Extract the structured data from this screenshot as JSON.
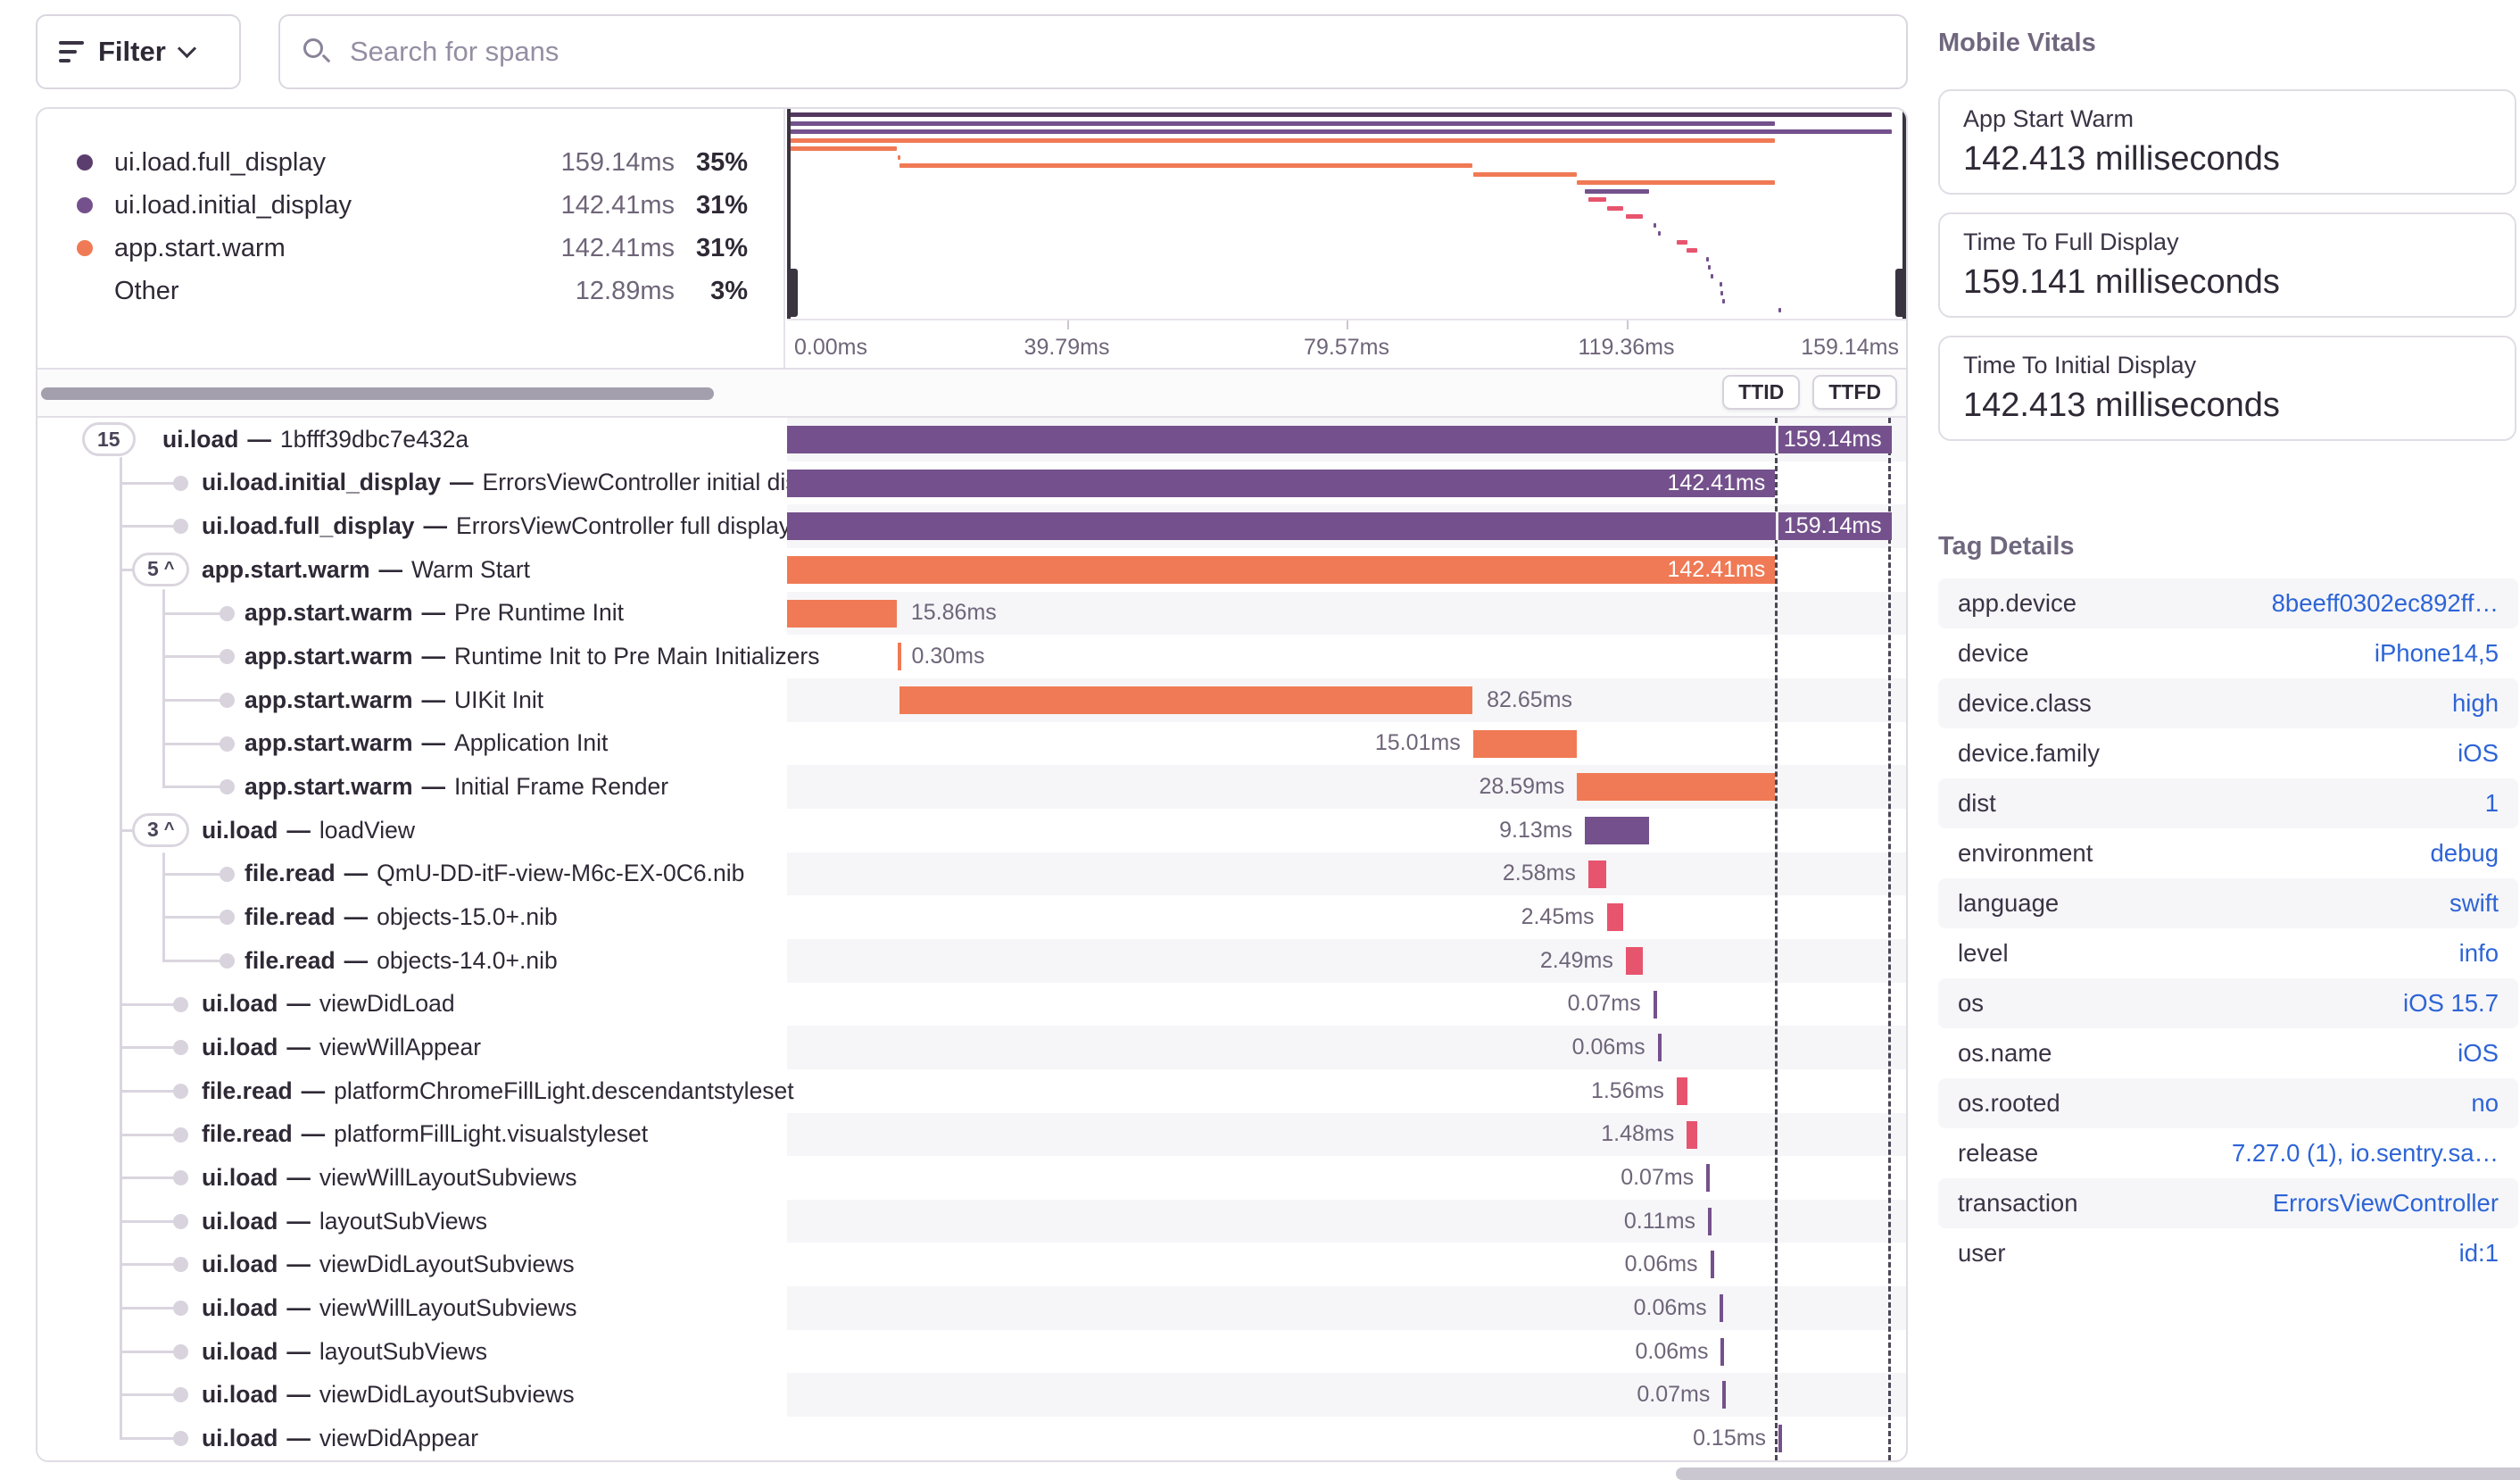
{
  "toolbar": {
    "filter_label": "Filter",
    "search_placeholder": "Search for spans"
  },
  "colors": {
    "purple": "#74518C",
    "orange": "#F07A55",
    "red": "#E7546E",
    "root_mini": "#53395F",
    "blue": "#2D64D6"
  },
  "legend": {
    "items": [
      {
        "label": "ui.load.full_display",
        "value": "159.14ms",
        "pct": "35%",
        "color": "#5B3D6E"
      },
      {
        "label": "ui.load.initial_display",
        "value": "142.41ms",
        "pct": "31%",
        "color": "#74518C"
      },
      {
        "label": "app.start.warm",
        "value": "142.41ms",
        "pct": "31%",
        "color": "#F07A55"
      },
      {
        "label": "Other",
        "value": "12.89ms",
        "pct": "3%",
        "color": null
      }
    ]
  },
  "minimap": {
    "axis_ticks": [
      "0.00ms",
      "39.79ms",
      "79.57ms",
      "119.36ms",
      "159.14ms"
    ]
  },
  "markers": {
    "ttid": "TTID",
    "ttfd": "TTFD",
    "ttid_pct": 88.3,
    "ttfd_pct": 98.4
  },
  "tree": {
    "separator": "—"
  },
  "spans": [
    {
      "op": "ui.load",
      "desc": "1bfff39dbc7e432a",
      "badge": "15",
      "arrow": false,
      "depth": 0,
      "color": "purple",
      "start": 0,
      "width": 98.7,
      "label": "159.14ms",
      "label_pos": "inside",
      "tick": false,
      "cross_ttid": true
    },
    {
      "op": "ui.load.initial_display",
      "desc": "ErrorsViewController initial display",
      "badge": null,
      "arrow": false,
      "depth": 1,
      "color": "purple",
      "start": 0,
      "width": 88.3,
      "label": "142.41ms",
      "label_pos": "inside",
      "tick": false,
      "cross_ttid": false
    },
    {
      "op": "ui.load.full_display",
      "desc": "ErrorsViewController full display",
      "badge": null,
      "arrow": false,
      "depth": 1,
      "color": "purple",
      "start": 0,
      "width": 98.7,
      "label": "159.14ms",
      "label_pos": "inside",
      "tick": false,
      "cross_ttid": true
    },
    {
      "op": "app.start.warm",
      "desc": "Warm Start",
      "badge": "5",
      "arrow": true,
      "depth": 1,
      "color": "orange",
      "start": 0,
      "width": 88.3,
      "label": "142.41ms",
      "label_pos": "inside",
      "tick": false,
      "cross_ttid": false
    },
    {
      "op": "app.start.warm",
      "desc": "Pre Runtime Init",
      "badge": null,
      "arrow": false,
      "depth": 2,
      "color": "orange",
      "start": 0,
      "width": 9.8,
      "label": "15.86ms",
      "label_pos": "right",
      "tick": false,
      "cross_ttid": false
    },
    {
      "op": "app.start.warm",
      "desc": "Runtime Init to Pre Main Initializers",
      "badge": null,
      "arrow": false,
      "depth": 2,
      "color": "orange",
      "start": 9.85,
      "width": 0.19,
      "label": "0.30ms",
      "label_pos": "right",
      "tick": true,
      "cross_ttid": false
    },
    {
      "op": "app.start.warm",
      "desc": "UIKit Init",
      "badge": null,
      "arrow": false,
      "depth": 2,
      "color": "orange",
      "start": 10.05,
      "width": 51.2,
      "label": "82.65ms",
      "label_pos": "right",
      "tick": false,
      "cross_ttid": false
    },
    {
      "op": "app.start.warm",
      "desc": "Application Init",
      "badge": null,
      "arrow": false,
      "depth": 2,
      "color": "orange",
      "start": 61.3,
      "width": 9.3,
      "label": "15.01ms",
      "label_pos": "left",
      "tick": false,
      "cross_ttid": false
    },
    {
      "op": "app.start.warm",
      "desc": "Initial Frame Render",
      "badge": null,
      "arrow": false,
      "depth": 2,
      "color": "orange",
      "start": 70.6,
      "width": 17.7,
      "label": "28.59ms",
      "label_pos": "left",
      "tick": false,
      "cross_ttid": false
    },
    {
      "op": "ui.load",
      "desc": "loadView",
      "badge": "3",
      "arrow": true,
      "depth": 1,
      "color": "purple",
      "start": 71.3,
      "width": 5.7,
      "label": "9.13ms",
      "label_pos": "left",
      "tick": false,
      "cross_ttid": false
    },
    {
      "op": "file.read",
      "desc": "QmU-DD-itF-view-M6c-EX-0C6.nib",
      "badge": null,
      "arrow": false,
      "depth": 2,
      "color": "red",
      "start": 71.6,
      "width": 1.6,
      "label": "2.58ms",
      "label_pos": "left",
      "tick": false,
      "cross_ttid": false
    },
    {
      "op": "file.read",
      "desc": "objects-15.0+.nib",
      "badge": null,
      "arrow": false,
      "depth": 2,
      "color": "red",
      "start": 73.25,
      "width": 1.5,
      "label": "2.45ms",
      "label_pos": "left",
      "tick": false,
      "cross_ttid": false
    },
    {
      "op": "file.read",
      "desc": "objects-14.0+.nib",
      "badge": null,
      "arrow": false,
      "depth": 2,
      "color": "red",
      "start": 74.95,
      "width": 1.55,
      "label": "2.49ms",
      "label_pos": "left",
      "tick": false,
      "cross_ttid": false
    },
    {
      "op": "ui.load",
      "desc": "viewDidLoad",
      "badge": null,
      "arrow": false,
      "depth": 1,
      "color": "purple",
      "start": 77.4,
      "width": 0.1,
      "label": "0.07ms",
      "label_pos": "left",
      "tick": true,
      "cross_ttid": false
    },
    {
      "op": "ui.load",
      "desc": "viewWillAppear",
      "badge": null,
      "arrow": false,
      "depth": 1,
      "color": "purple",
      "start": 77.8,
      "width": 0.1,
      "label": "0.06ms",
      "label_pos": "left",
      "tick": true,
      "cross_ttid": false
    },
    {
      "op": "file.read",
      "desc": "platformChromeFillLight.descendantstyleset",
      "badge": null,
      "arrow": false,
      "depth": 1,
      "color": "red",
      "start": 79.5,
      "width": 0.97,
      "label": "1.56ms",
      "label_pos": "left",
      "tick": false,
      "cross_ttid": false
    },
    {
      "op": "file.read",
      "desc": "platformFillLight.visualstyleset",
      "badge": null,
      "arrow": false,
      "depth": 1,
      "color": "red",
      "start": 80.4,
      "width": 0.92,
      "label": "1.48ms",
      "label_pos": "left",
      "tick": false,
      "cross_ttid": false
    },
    {
      "op": "ui.load",
      "desc": "viewWillLayoutSubviews",
      "badge": null,
      "arrow": false,
      "depth": 1,
      "color": "purple",
      "start": 82.15,
      "width": 0.1,
      "label": "0.07ms",
      "label_pos": "left",
      "tick": true,
      "cross_ttid": false
    },
    {
      "op": "ui.load",
      "desc": "layoutSubViews",
      "badge": null,
      "arrow": false,
      "depth": 1,
      "color": "purple",
      "start": 82.3,
      "width": 0.1,
      "label": "0.11ms",
      "label_pos": "left",
      "tick": true,
      "cross_ttid": false
    },
    {
      "op": "ui.load",
      "desc": "viewDidLayoutSubviews",
      "badge": null,
      "arrow": false,
      "depth": 1,
      "color": "purple",
      "start": 82.5,
      "width": 0.1,
      "label": "0.06ms",
      "label_pos": "left",
      "tick": true,
      "cross_ttid": false
    },
    {
      "op": "ui.load",
      "desc": "viewWillLayoutSubviews",
      "badge": null,
      "arrow": false,
      "depth": 1,
      "color": "purple",
      "start": 83.3,
      "width": 0.1,
      "label": "0.06ms",
      "label_pos": "left",
      "tick": true,
      "cross_ttid": false
    },
    {
      "op": "ui.load",
      "desc": "layoutSubViews",
      "badge": null,
      "arrow": false,
      "depth": 1,
      "color": "purple",
      "start": 83.45,
      "width": 0.1,
      "label": "0.06ms",
      "label_pos": "left",
      "tick": true,
      "cross_ttid": false
    },
    {
      "op": "ui.load",
      "desc": "viewDidLayoutSubviews",
      "badge": null,
      "arrow": false,
      "depth": 1,
      "color": "purple",
      "start": 83.6,
      "width": 0.1,
      "label": "0.07ms",
      "label_pos": "left",
      "tick": true,
      "cross_ttid": false
    },
    {
      "op": "ui.load",
      "desc": "viewDidAppear",
      "badge": null,
      "arrow": false,
      "depth": 1,
      "color": "purple",
      "start": 88.6,
      "width": 0.12,
      "label": "0.15ms",
      "label_pos": "left",
      "tick": true,
      "cross_ttid": false
    }
  ],
  "vitals": {
    "title": "Mobile Vitals",
    "cards": [
      {
        "label": "App Start Warm",
        "value": "142.413 milliseconds"
      },
      {
        "label": "Time To Full Display",
        "value": "159.141 milliseconds"
      },
      {
        "label": "Time To Initial Display",
        "value": "142.413 milliseconds"
      }
    ]
  },
  "tags": {
    "title": "Tag Details",
    "rows": [
      {
        "key": "app.device",
        "value": "8beeff0302ec892ff…"
      },
      {
        "key": "device",
        "value": "iPhone14,5"
      },
      {
        "key": "device.class",
        "value": "high"
      },
      {
        "key": "device.family",
        "value": "iOS"
      },
      {
        "key": "dist",
        "value": "1"
      },
      {
        "key": "environment",
        "value": "debug"
      },
      {
        "key": "language",
        "value": "swift"
      },
      {
        "key": "level",
        "value": "info"
      },
      {
        "key": "os",
        "value": "iOS 15.7"
      },
      {
        "key": "os.name",
        "value": "iOS"
      },
      {
        "key": "os.rooted",
        "value": "no"
      },
      {
        "key": "release",
        "value": "7.27.0 (1), io.sentry.sa…"
      },
      {
        "key": "transaction",
        "value": "ErrorsViewController"
      },
      {
        "key": "user",
        "value": "id:1"
      }
    ]
  }
}
